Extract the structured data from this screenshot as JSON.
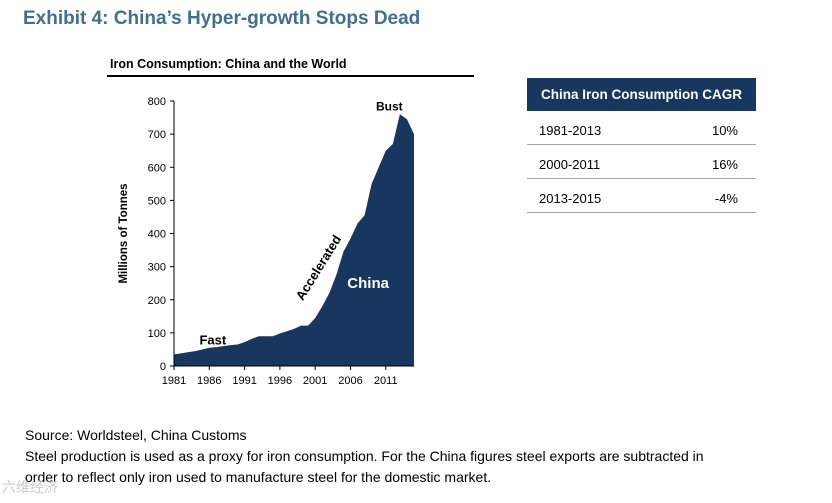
{
  "exhibit_title": "Exhibit 4: China’s Hyper-growth Stops Dead",
  "chart_data": {
    "type": "area",
    "title": "Iron Consumption: China and the World",
    "xlabel": "",
    "ylabel": "Millions of Tonnes",
    "ylim": [
      0,
      800
    ],
    "yticks": [
      0,
      100,
      200,
      300,
      400,
      500,
      600,
      700,
      800
    ],
    "xlim": [
      1981,
      2015
    ],
    "xticks": [
      1981,
      1986,
      1991,
      1996,
      2001,
      2006,
      2011
    ],
    "series": [
      {
        "name": "China",
        "x": [
          1981,
          1982,
          1983,
          1984,
          1985,
          1986,
          1987,
          1988,
          1989,
          1990,
          1991,
          1992,
          1993,
          1994,
          1995,
          1996,
          1997,
          1998,
          1999,
          2000,
          2001,
          2002,
          2003,
          2004,
          2005,
          2006,
          2007,
          2008,
          2009,
          2010,
          2011,
          2012,
          2013,
          2014,
          2015
        ],
        "values": [
          35,
          38,
          42,
          45,
          50,
          55,
          57,
          60,
          63,
          65,
          72,
          82,
          90,
          90,
          90,
          98,
          105,
          112,
          122,
          122,
          145,
          180,
          220,
          275,
          345,
          385,
          430,
          455,
          550,
          600,
          650,
          670,
          760,
          745,
          700
        ]
      }
    ],
    "annotations": [
      {
        "text": "Fast",
        "x": 1986.5,
        "y": 65
      },
      {
        "text": "Accelerated",
        "x": 2002,
        "y": 290
      },
      {
        "text": "China",
        "x": 2008.5,
        "y": 235
      },
      {
        "text": "Bust",
        "x": 2011.5,
        "y": 772
      }
    ]
  },
  "cagr_table": {
    "header": "China Iron Consumption CAGR",
    "rows": [
      {
        "period": "1981-2013",
        "value": "10%"
      },
      {
        "period": "2000-2011",
        "value": "16%"
      },
      {
        "period": "2013-2015",
        "value": "-4%"
      }
    ]
  },
  "source": {
    "line1": "Source: Worldsteel, China Customs",
    "line2": "Steel production is used as a proxy for iron consumption. For the China figures steel exports are subtracted in",
    "line3": "order to reflect only iron used to manufacture steel for the domestic market."
  },
  "watermark": "六维经济"
}
